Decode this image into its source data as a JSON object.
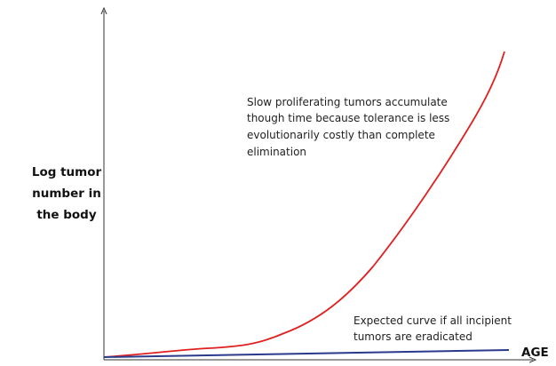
{
  "y_axis_label": [
    "Log tumor",
    "number in",
    "the body"
  ],
  "x_axis_label": "AGE",
  "annotations": [
    {
      "lines": [
        "Slow proliferating tumors accumulate",
        "though time because tolerance is less",
        "evolutionarily costly than complete",
        "elimination"
      ]
    },
    {
      "lines": [
        "Expected curve if all incipient",
        "tumors are eradicated"
      ]
    }
  ]
}
